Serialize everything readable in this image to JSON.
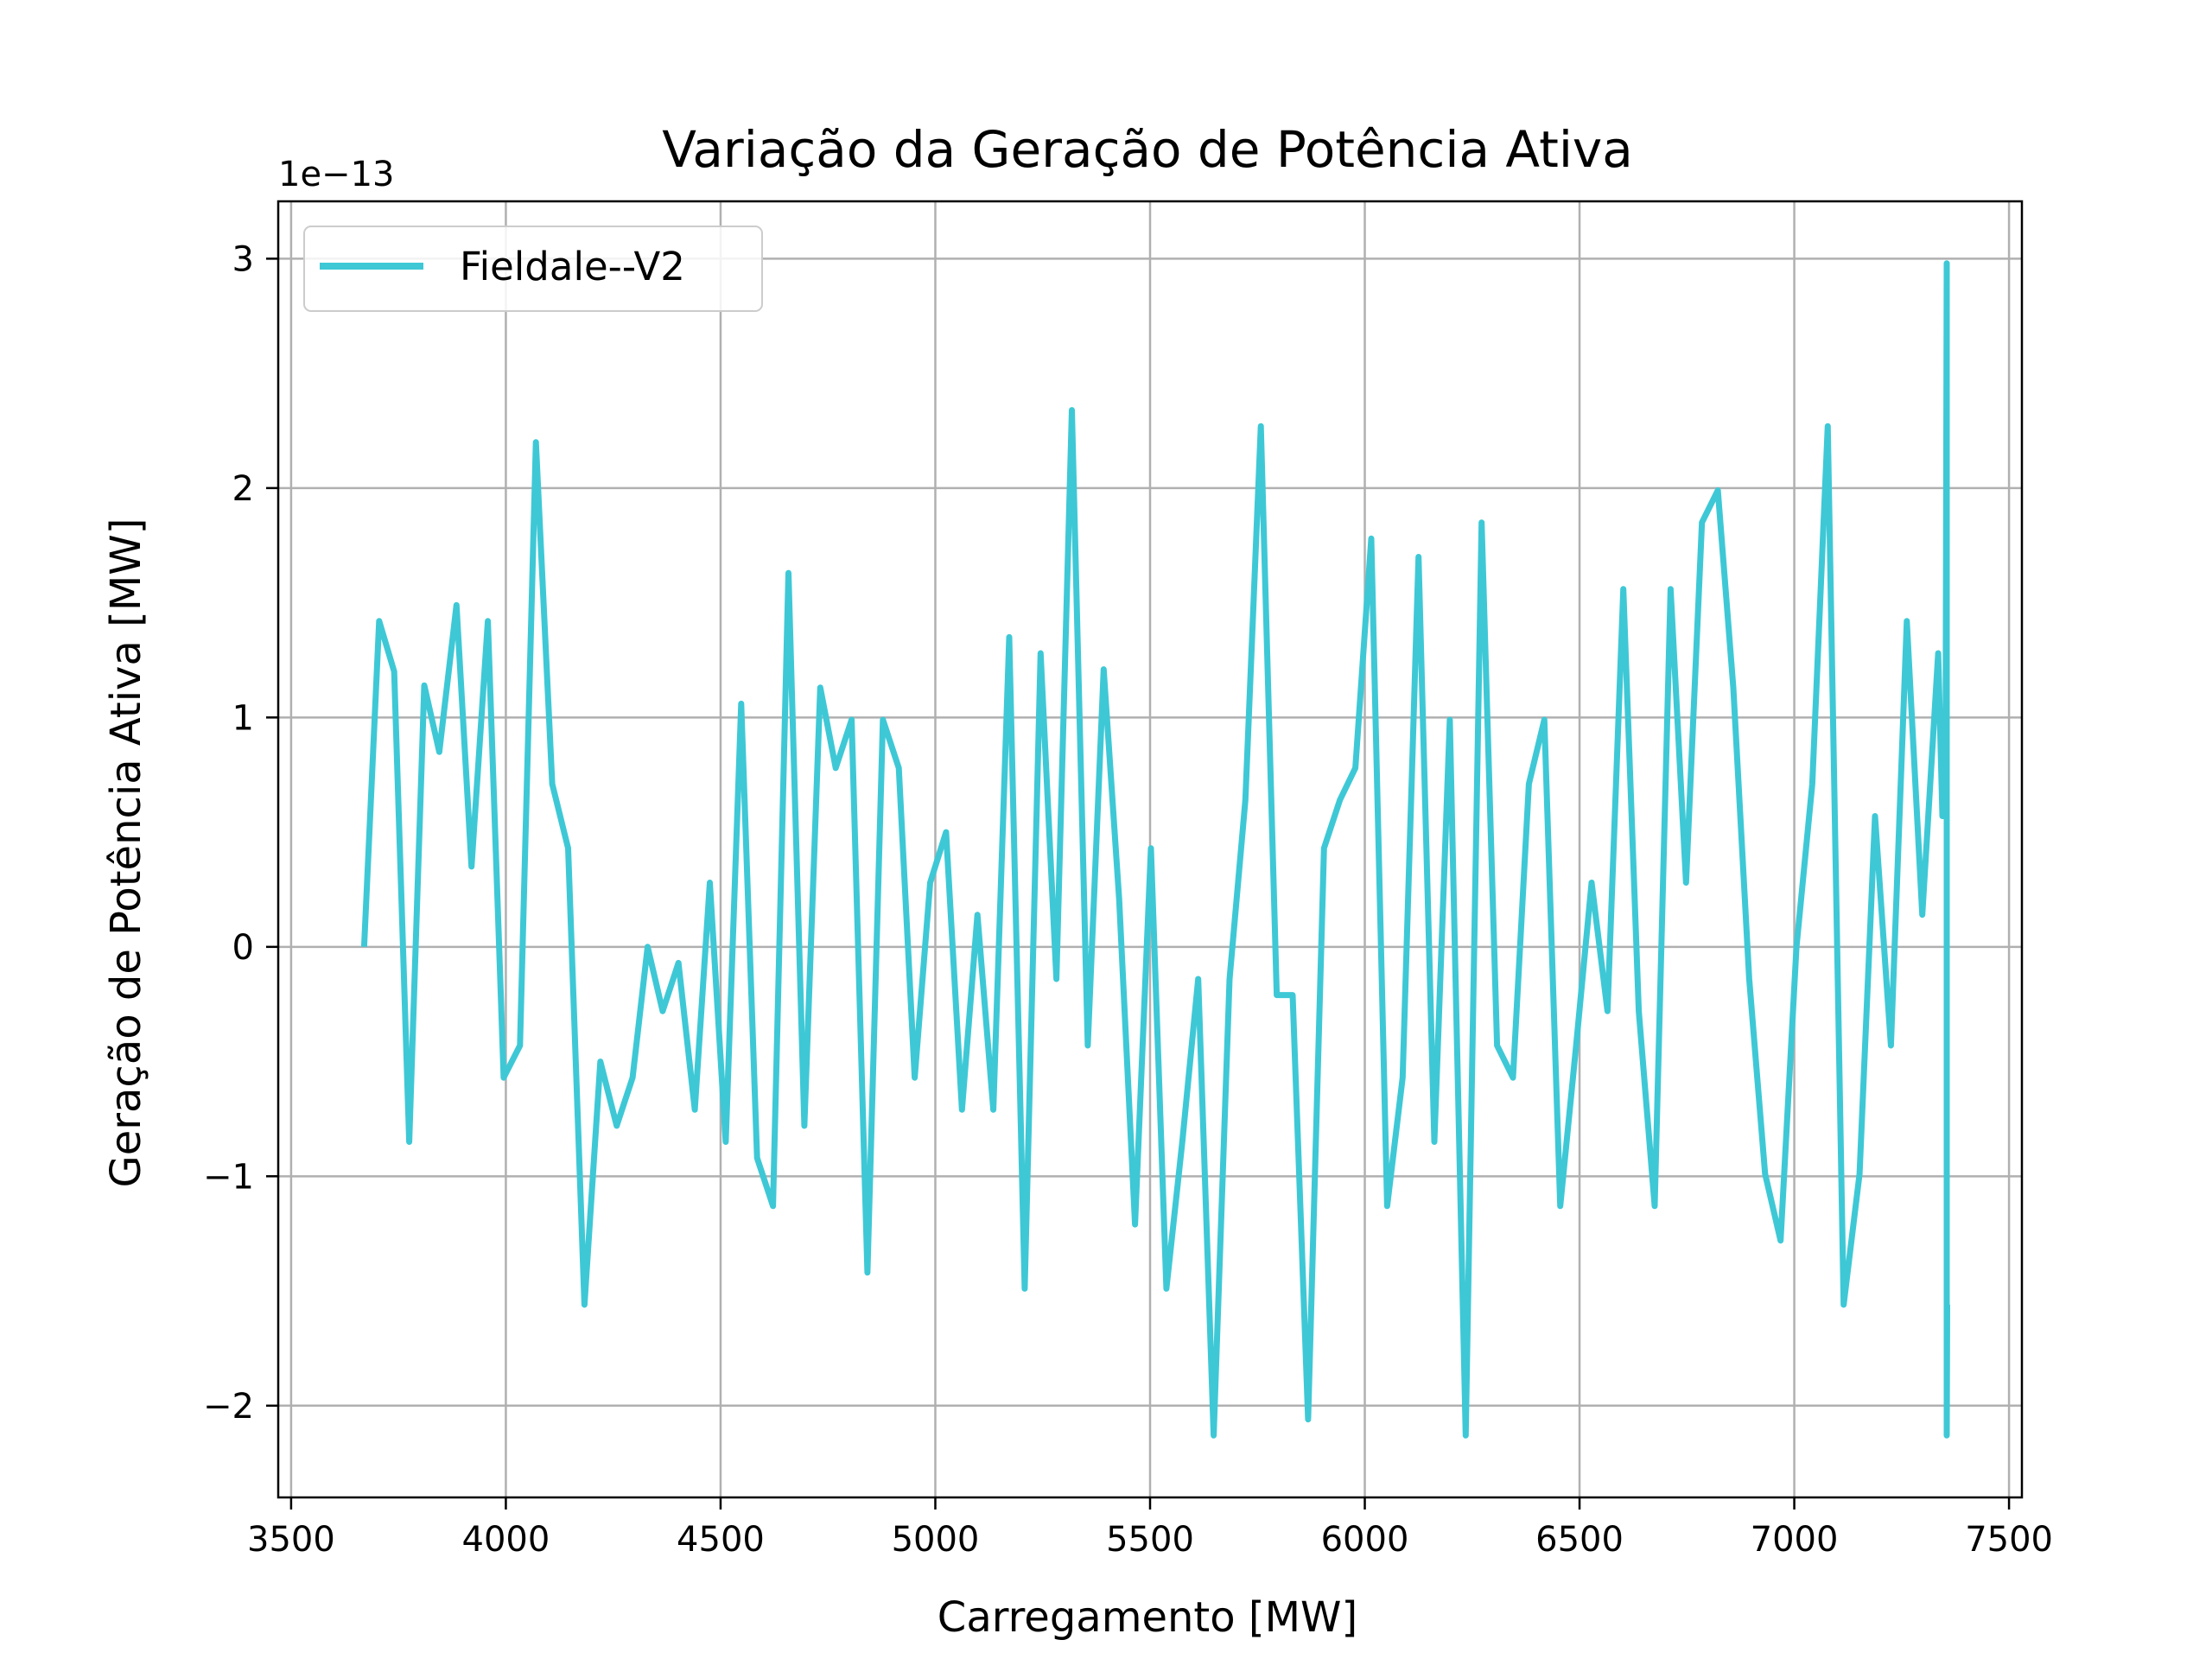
{
  "chart_data": {
    "type": "line",
    "title": "Variação da Geração de Potência Ativa",
    "xlabel": "Carregamento [MW]",
    "ylabel": "Geração de Potência Ativa [MW]",
    "y_offset_label": "1e−13",
    "xlim": [
      3470,
      7530
    ],
    "ylim": [
      -2.4,
      3.25
    ],
    "x_ticks": [
      3500,
      4000,
      4500,
      5000,
      5500,
      6000,
      6500,
      7000,
      7500
    ],
    "y_ticks": [
      -2,
      -1,
      0,
      1,
      2,
      3
    ],
    "y_tick_labels": [
      "−2",
      "−1",
      "0",
      "1",
      "2",
      "3"
    ],
    "grid": true,
    "legend_position": "upper-left",
    "colors": {
      "series": "#3EC8D6",
      "grid": "#b0b0b0",
      "axes": "#000000"
    },
    "series": [
      {
        "name": "Fieldale--V2",
        "x": [
          3670,
          3705,
          3740,
          3775,
          3810,
          3845,
          3885,
          3920,
          3958,
          3995,
          4033,
          4070,
          4108,
          4145,
          4183,
          4220,
          4258,
          4295,
          4330,
          4365,
          4402,
          4440,
          4475,
          4512,
          4548,
          4585,
          4622,
          4658,
          4695,
          4732,
          4768,
          4805,
          4842,
          4878,
          4915,
          4952,
          4988,
          5025,
          5062,
          5098,
          5135,
          5172,
          5208,
          5245,
          5282,
          5318,
          5355,
          5392,
          5428,
          5465,
          5502,
          5538,
          5575,
          5612,
          5648,
          5685,
          5722,
          5758,
          5795,
          5832,
          5868,
          5905,
          5942,
          5978,
          6015,
          6052,
          6088,
          6125,
          6162,
          6198,
          6235,
          6272,
          6308,
          6345,
          6382,
          6418,
          6455,
          6492,
          6528,
          6565,
          6602,
          6638,
          6675,
          6712,
          6748,
          6785,
          6822,
          6858,
          6895,
          6932,
          6968,
          7005,
          7042,
          7078,
          7115,
          7152,
          7188,
          7225,
          7262,
          7298,
          7335,
          7345,
          7352,
          7355,
          7355,
          7356,
          7357
        ],
        "y": [
          0.0,
          1.42,
          1.2,
          -0.85,
          1.14,
          0.85,
          1.49,
          0.35,
          1.42,
          -0.57,
          -0.43,
          2.2,
          0.71,
          0.43,
          -1.56,
          -0.5,
          -0.78,
          -0.57,
          0.0,
          -0.28,
          -0.07,
          -0.71,
          0.28,
          -0.85,
          1.06,
          -0.92,
          -1.13,
          1.63,
          -0.78,
          1.13,
          0.78,
          0.99,
          -1.42,
          0.99,
          0.78,
          -0.57,
          0.28,
          0.5,
          -0.71,
          0.14,
          -0.71,
          1.35,
          -1.49,
          1.28,
          -0.14,
          2.34,
          -0.43,
          1.21,
          0.21,
          -1.21,
          0.43,
          -1.49,
          -0.85,
          -0.14,
          -2.13,
          -0.14,
          0.64,
          2.27,
          -0.21,
          -0.21,
          -2.06,
          0.43,
          0.64,
          0.78,
          1.78,
          -1.13,
          -0.57,
          1.7,
          -0.85,
          0.99,
          -2.13,
          1.85,
          -0.43,
          -0.57,
          0.71,
          0.99,
          -1.13,
          -0.43,
          0.28,
          -0.28,
          1.56,
          -0.28,
          -1.13,
          1.56,
          0.28,
          1.85,
          1.99,
          1.13,
          -0.14,
          -0.99,
          -1.28,
          0.0,
          0.71,
          2.27,
          -1.56,
          -0.99,
          0.57,
          -0.43,
          1.42,
          0.14,
          1.28,
          0.57,
          0.57,
          2.98,
          -2.13,
          -1.56,
          -1.56
        ]
      }
    ]
  }
}
